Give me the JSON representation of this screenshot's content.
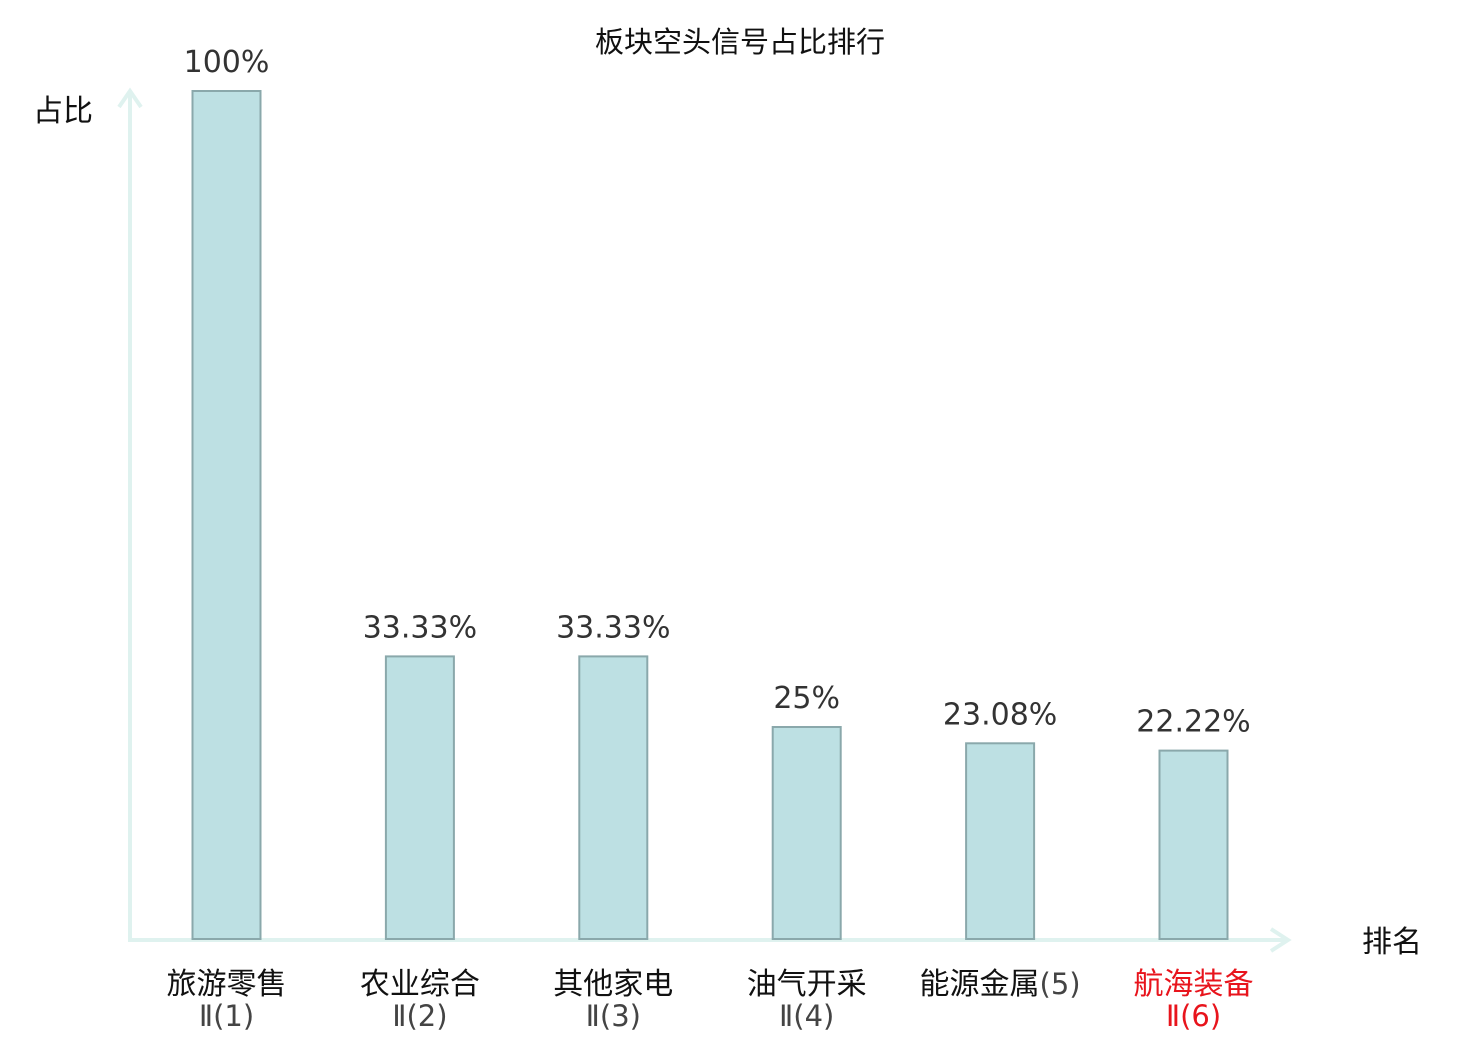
{
  "chart_data": {
    "type": "bar",
    "title": "板块空头信号占比排行",
    "ylabel": "占比",
    "xlabel": "排名",
    "ylim": [
      0,
      100
    ],
    "grid": false,
    "categories": [
      {
        "name": "旅游零售",
        "rank": "Ⅱ(1)",
        "value": 100,
        "label": "100%",
        "highlight": false
      },
      {
        "name": "农业综合",
        "rank": "Ⅱ(2)",
        "value": 33.33,
        "label": "33.33%",
        "highlight": false
      },
      {
        "name": "其他家电",
        "rank": "Ⅱ(3)",
        "value": 33.33,
        "label": "33.33%",
        "highlight": false
      },
      {
        "name": "油气开采",
        "rank": "Ⅱ(4)",
        "value": 25,
        "label": "25%",
        "highlight": false
      },
      {
        "name": "能源金属",
        "rank": "(5)",
        "value": 23.08,
        "label": "23.08%",
        "highlight": false
      },
      {
        "name": "航海装备",
        "rank": "Ⅱ(6)",
        "value": 22.22,
        "label": "22.22%",
        "highlight": true
      }
    ],
    "colors": {
      "bar_fill": "#bde0e3",
      "bar_stroke": "#8aa8ab",
      "axis": "#dff2ef",
      "highlight_text": "#e8141c",
      "normal_text": "#111111",
      "rank_text": "#444444",
      "value_text": "#333333"
    }
  }
}
